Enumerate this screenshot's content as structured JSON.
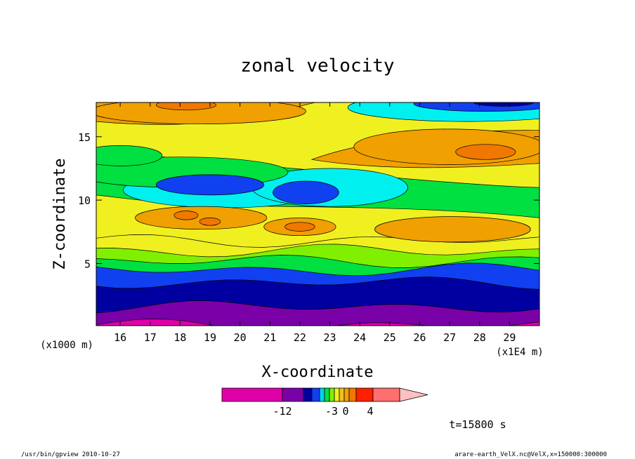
{
  "chart_data": {
    "type": "heatmap",
    "title": "zonal velocity",
    "xlabel": "X-coordinate",
    "ylabel": "Z-coordinate",
    "x_unit_left": "(x1000 m)",
    "x_unit_right": "(x1E4 m)",
    "xlim": [
      15.2,
      30.0
    ],
    "ylim": [
      0.1,
      17.7
    ],
    "x_ticks": [
      16,
      17,
      18,
      19,
      20,
      21,
      22,
      23,
      24,
      25,
      26,
      27,
      28,
      29
    ],
    "y_ticks": [
      5,
      10,
      15
    ],
    "time_label": "t=15800 s",
    "legend": {
      "type": "colorbar",
      "labels": [
        {
          "text": "-12",
          "at": -12
        },
        {
          "text": "-3",
          "at": -3
        },
        {
          "text": "0",
          "at": 0
        },
        {
          "text": "4",
          "at": 4
        }
      ],
      "levels": [
        -18,
        -12,
        -9,
        -7,
        -5,
        -4,
        -3,
        -2,
        -1,
        0,
        1,
        2,
        3,
        4,
        6,
        8
      ],
      "colors": [
        "#e000a8",
        "#7a00a8",
        "#0000a0",
        "#1040f0",
        "#00d0f0",
        "#00e040",
        "#80f000",
        "#f0f020",
        "#f0c020",
        "#f0a000",
        "#f07800",
        "#ff2000",
        "#ff6f6f",
        "#ffc0c0"
      ]
    },
    "bands": [
      {
        "level": 0.1,
        "color": "#e000a8"
      },
      {
        "level": 1.6,
        "color": "#7a00a8"
      },
      {
        "level": 3.5,
        "color": "#0000a0"
      },
      {
        "level": 4.5,
        "color": "#1040f0"
      },
      {
        "level": 5.2,
        "color": "#00e040"
      },
      {
        "level": 6.0,
        "color": "#80f000"
      },
      {
        "level": 6.8,
        "color": "#f0f020"
      }
    ],
    "features": [
      {
        "kind": "cyan",
        "cx": 19.5,
        "cy": 10.8,
        "rx": 3.4,
        "ry": 1.4
      },
      {
        "kind": "cyan",
        "cx": 23.0,
        "cy": 11.0,
        "rx": 2.6,
        "ry": 1.5
      },
      {
        "kind": "green",
        "cx": 18.0,
        "cy": 12.2,
        "rx": 3.6,
        "ry": 1.2
      },
      {
        "kind": "blue",
        "cx": 19.0,
        "cy": 11.2,
        "rx": 1.8,
        "ry": 0.8
      },
      {
        "kind": "blue",
        "cx": 22.2,
        "cy": 10.6,
        "rx": 1.1,
        "ry": 0.9
      },
      {
        "kind": "orange",
        "cx": 18.7,
        "cy": 8.6,
        "rx": 2.2,
        "ry": 0.9
      },
      {
        "kind": "orange",
        "cx": 22.0,
        "cy": 7.9,
        "rx": 1.2,
        "ry": 0.7
      },
      {
        "kind": "orange",
        "cx": 27.1,
        "cy": 7.7,
        "rx": 2.6,
        "ry": 1.0
      },
      {
        "kind": "orange",
        "cx": 18.6,
        "cy": 17.0,
        "rx": 3.6,
        "ry": 1.0
      },
      {
        "kind": "orange",
        "cx": 27.0,
        "cy": 14.2,
        "rx": 3.2,
        "ry": 1.4
      },
      {
        "kind": "dorange",
        "cx": 28.2,
        "cy": 13.8,
        "rx": 1.0,
        "ry": 0.6
      },
      {
        "kind": "dorange",
        "cx": 18.2,
        "cy": 8.8,
        "rx": 0.4,
        "ry": 0.35
      },
      {
        "kind": "dorange",
        "cx": 19.0,
        "cy": 8.3,
        "rx": 0.35,
        "ry": 0.3
      },
      {
        "kind": "dorange",
        "cx": 22.0,
        "cy": 7.9,
        "rx": 0.5,
        "ry": 0.35
      },
      {
        "kind": "dorange",
        "cx": 18.2,
        "cy": 17.5,
        "rx": 1.0,
        "ry": 0.4
      },
      {
        "kind": "cyan",
        "cx": 27.6,
        "cy": 17.3,
        "rx": 4.0,
        "ry": 1.1
      },
      {
        "kind": "blue",
        "cx": 28.2,
        "cy": 17.6,
        "rx": 2.4,
        "ry": 0.6
      },
      {
        "kind": "navy",
        "cx": 28.8,
        "cy": 17.7,
        "rx": 1.0,
        "ry": 0.3
      },
      {
        "kind": "green",
        "cx": 16.0,
        "cy": 13.5,
        "rx": 1.4,
        "ry": 0.8
      }
    ]
  },
  "footer": {
    "left": "/usr/bin/gpview   2010-10-27",
    "right": "arare-earth_VelX.nc@VelX,x=150000:300000"
  }
}
